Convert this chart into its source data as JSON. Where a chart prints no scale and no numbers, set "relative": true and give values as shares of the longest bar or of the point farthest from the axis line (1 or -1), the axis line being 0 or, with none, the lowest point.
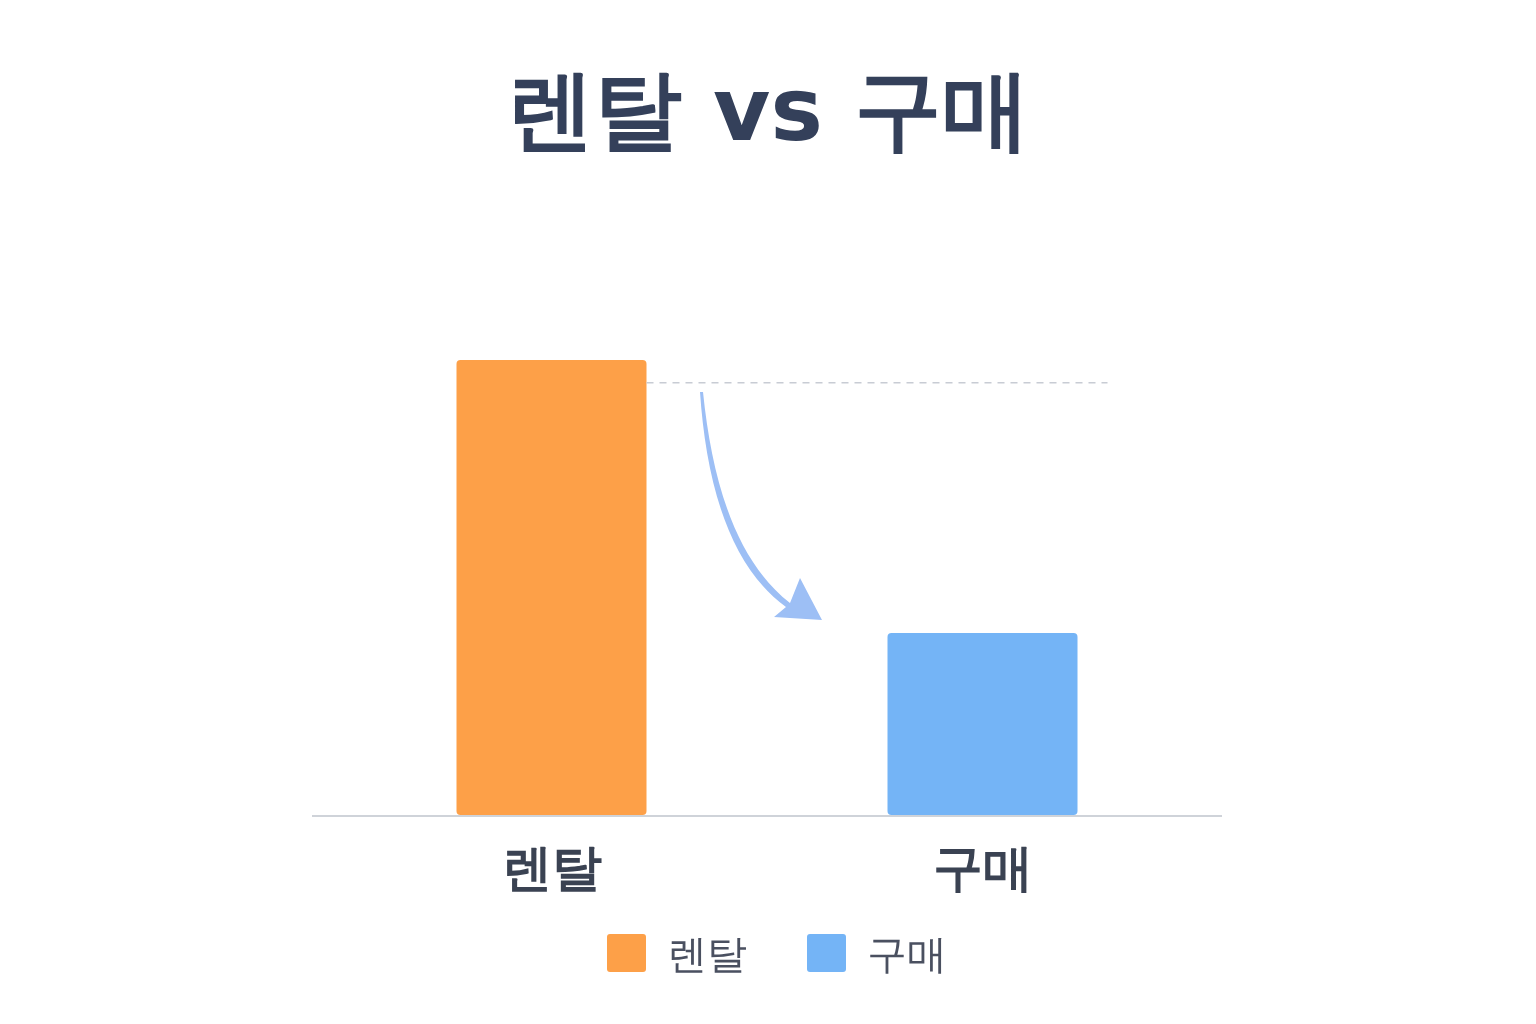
{
  "chart_data": {
    "type": "bar",
    "title": "렌탈 vs 구매",
    "relative": true,
    "categories": [
      "렌탈",
      "구매"
    ],
    "series": [
      {
        "name": "렌탈",
        "color": "#fda048",
        "values": [
          1,
          null
        ]
      },
      {
        "name": "구매",
        "color": "#74b4f6",
        "values": [
          null,
          0.4
        ]
      }
    ],
    "ref_lines": [
      {
        "axis": "y",
        "value": 0.95,
        "color": "#c8ccd4",
        "line_style": "dashed"
      }
    ],
    "legend": "bottom"
  }
}
